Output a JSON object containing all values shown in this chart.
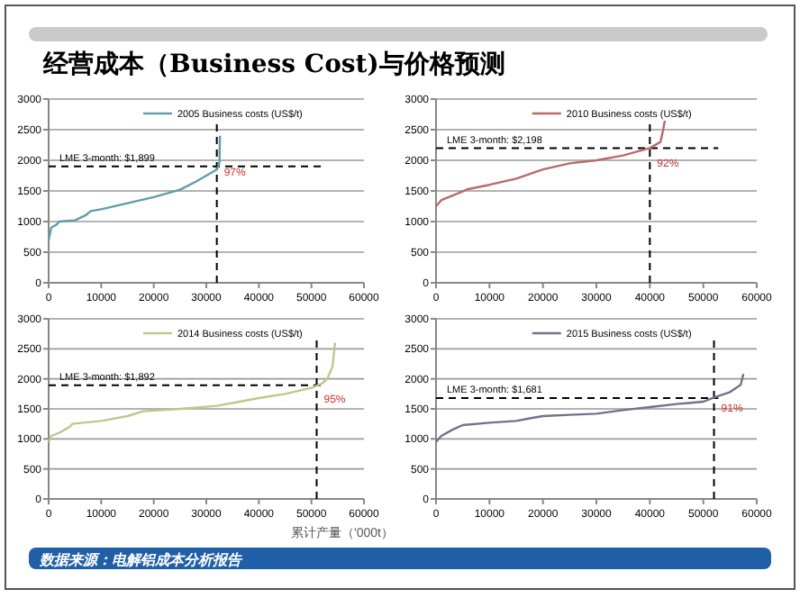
{
  "chart_data": [
    {
      "type": "line",
      "title": "经营成本（Business Cost)与价格预测",
      "legend": "top",
      "grid": "y",
      "xlim": [
        0,
        60000
      ],
      "xticks": [
        0,
        10000,
        20000,
        30000,
        40000,
        50000,
        60000
      ],
      "ylim": [
        0,
        3000
      ],
      "yticks": [
        0,
        500,
        1000,
        1500,
        2000,
        2500,
        3000
      ],
      "series": [
        {
          "name": "2005 Business costs (US$/t)",
          "color": "#5f9ea8",
          "x": [
            0,
            500,
            1500,
            2000,
            5000,
            7000,
            8000,
            10000,
            15000,
            20000,
            25000,
            28000,
            30000,
            32000,
            32500,
            32600
          ],
          "values": [
            700,
            900,
            950,
            1000,
            1020,
            1100,
            1170,
            1200,
            1300,
            1400,
            1520,
            1650,
            1750,
            1850,
            1950,
            2400
          ]
        }
      ],
      "ref_lines": [
        {
          "axis": "y",
          "value": 1899,
          "label": "LME 3-month: $1,899",
          "line_style": "dashed"
        },
        {
          "axis": "x",
          "value": 32000,
          "line_style": "dashed"
        }
      ],
      "annotations": [
        {
          "text": "97%",
          "x": 32000,
          "y": 1750
        }
      ]
    },
    {
      "type": "line",
      "legend": "top",
      "grid": "y",
      "xlim": [
        0,
        60000
      ],
      "xticks": [
        0,
        10000,
        20000,
        30000,
        40000,
        50000,
        60000
      ],
      "ylim": [
        0,
        3000
      ],
      "yticks": [
        0,
        500,
        1000,
        1500,
        2000,
        2500,
        3000
      ],
      "series": [
        {
          "name": "2010 Business costs (US$/t)",
          "color": "#b96a6a",
          "x": [
            0,
            1000,
            3000,
            6000,
            10000,
            15000,
            20000,
            25000,
            30000,
            35000,
            40000,
            42000,
            42500,
            43000
          ],
          "values": [
            1250,
            1350,
            1420,
            1530,
            1600,
            1700,
            1850,
            1950,
            2000,
            2080,
            2200,
            2300,
            2500,
            2750
          ]
        }
      ],
      "ref_lines": [
        {
          "axis": "y",
          "value": 2198,
          "label": "LME 3-month: $2,198",
          "line_style": "dashed"
        },
        {
          "axis": "x",
          "value": 40000,
          "line_style": "dashed"
        }
      ],
      "annotations": [
        {
          "text": "92%",
          "x": 40000,
          "y": 1900
        }
      ]
    },
    {
      "type": "line",
      "legend": "top",
      "grid": "y",
      "xlabel": "累计产量（'000t）",
      "annotations": [
        "数据来源：电解铝成本分析报告",
        {
          "text": "95%",
          "x": 51000,
          "y": 1600
        }
      ],
      "xlim": [
        0,
        60000
      ],
      "xticks": [
        0,
        10000,
        20000,
        30000,
        40000,
        50000,
        60000
      ],
      "ylim": [
        0,
        3000
      ],
      "yticks": [
        0,
        500,
        1000,
        1500,
        2000,
        2500,
        3000
      ],
      "series": [
        {
          "name": "2014 Business costs (US$/t)",
          "color": "#c4c58a",
          "x": [
            0,
            500,
            2000,
            4000,
            4500,
            10000,
            15000,
            18000,
            25000,
            32000,
            40000,
            45000,
            50000,
            52000,
            53000,
            54000,
            54500
          ],
          "values": [
            950,
            1050,
            1100,
            1200,
            1250,
            1300,
            1380,
            1460,
            1500,
            1550,
            1680,
            1750,
            1850,
            1920,
            2000,
            2200,
            2600
          ]
        }
      ],
      "ref_lines": [
        {
          "axis": "y",
          "value": 1892,
          "label": "LME 3-month: $1,892",
          "line_style": "dashed"
        },
        {
          "axis": "x",
          "value": 51000,
          "line_style": "dashed"
        }
      ]
    },
    {
      "type": "line",
      "legend": "top",
      "grid": "y",
      "xlim": [
        0,
        60000
      ],
      "xticks": [
        0,
        10000,
        20000,
        30000,
        40000,
        50000,
        60000
      ],
      "ylim": [
        0,
        3000
      ],
      "yticks": [
        0,
        500,
        1000,
        1500,
        2000,
        2500,
        3000
      ],
      "series": [
        {
          "name": "2015 Business costs (US$/t)",
          "color": "#7a6e8c",
          "x": [
            0,
            1000,
            3000,
            5000,
            10000,
            15000,
            18000,
            20000,
            25000,
            30000,
            35000,
            40000,
            45000,
            50000,
            52000,
            55000,
            57000,
            57500
          ],
          "values": [
            950,
            1050,
            1150,
            1230,
            1270,
            1300,
            1350,
            1380,
            1400,
            1420,
            1480,
            1530,
            1580,
            1620,
            1690,
            1780,
            1900,
            2080
          ]
        }
      ],
      "ref_lines": [
        {
          "axis": "y",
          "value": 1681,
          "label": "LME 3-month: $1,681",
          "line_style": "dashed"
        },
        {
          "axis": "x",
          "value": 52000,
          "line_style": "dashed"
        }
      ],
      "annotations": [
        {
          "text": "91%",
          "x": 52000,
          "y": 1450
        }
      ]
    }
  ]
}
